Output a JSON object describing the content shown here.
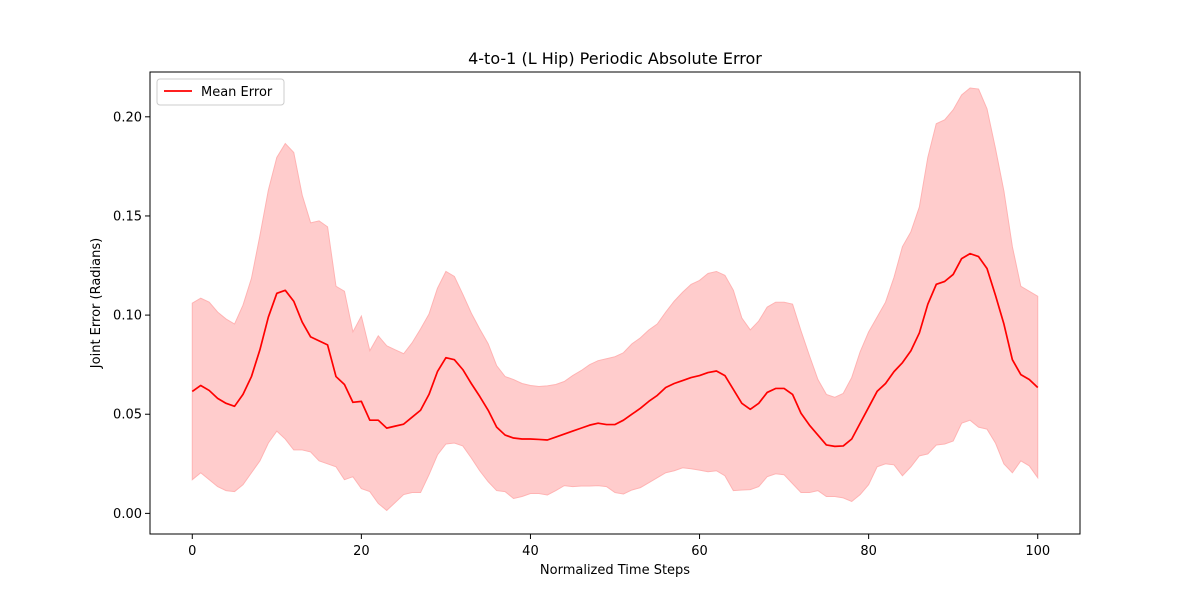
{
  "chart_data": {
    "type": "area",
    "title": "4-to-1 (L Hip) Periodic Absolute Error",
    "xlabel": "Normalized Time Steps",
    "ylabel": "Joint Error (Radians)",
    "xlim": [
      -5,
      105
    ],
    "ylim": [
      -0.0104,
      0.2226
    ],
    "xticks": [
      "0",
      "20",
      "40",
      "60",
      "80",
      "100"
    ],
    "yticks": [
      "0.00",
      "0.05",
      "0.10",
      "0.15",
      "0.20"
    ],
    "grid": false,
    "legend_position": "top-left",
    "colors": {
      "line": "#ff0000",
      "band_fill": "#ffcccc",
      "band_edge": "#ffb3b3",
      "frame": "#000000"
    },
    "x": [
      0,
      1,
      2,
      3,
      4,
      5,
      6,
      7,
      8,
      9,
      10,
      11,
      12,
      13,
      14,
      15,
      16,
      17,
      18,
      19,
      20,
      21,
      22,
      23,
      24,
      25,
      26,
      27,
      28,
      29,
      30,
      31,
      32,
      33,
      34,
      35,
      36,
      37,
      38,
      39,
      40,
      41,
      42,
      43,
      44,
      45,
      46,
      47,
      48,
      49,
      50,
      51,
      52,
      53,
      54,
      55,
      56,
      57,
      58,
      59,
      60,
      61,
      62,
      63,
      64,
      65,
      66,
      67,
      68,
      69,
      70,
      71,
      72,
      73,
      74,
      75,
      76,
      77,
      78,
      79,
      80,
      81,
      82,
      83,
      84,
      85,
      86,
      87,
      88,
      89,
      90,
      91,
      92,
      93,
      94,
      95,
      96,
      97,
      98,
      99,
      100
    ],
    "series": [
      {
        "name": "Mean Error",
        "values": [
          0.0615,
          0.0645,
          0.062,
          0.058,
          0.0555,
          0.054,
          0.06,
          0.069,
          0.0825,
          0.099,
          0.111,
          0.1125,
          0.107,
          0.0965,
          0.089,
          0.087,
          0.085,
          0.069,
          0.065,
          0.056,
          0.0565,
          0.047,
          0.047,
          0.043,
          0.044,
          0.045,
          0.0485,
          0.052,
          0.06,
          0.0715,
          0.0785,
          0.0775,
          0.0725,
          0.0655,
          0.059,
          0.052,
          0.0435,
          0.0395,
          0.038,
          0.0375,
          0.0375,
          0.0373,
          0.037,
          0.0385,
          0.04,
          0.0415,
          0.043,
          0.0445,
          0.0455,
          0.0448,
          0.0448,
          0.047,
          0.05,
          0.053,
          0.0565,
          0.0595,
          0.0635,
          0.0655,
          0.067,
          0.0685,
          0.0695,
          0.071,
          0.0718,
          0.0695,
          0.0625,
          0.0555,
          0.0525,
          0.0555,
          0.061,
          0.063,
          0.063,
          0.06,
          0.0505,
          0.0445,
          0.0395,
          0.0345,
          0.0338,
          0.034,
          0.0375,
          0.0455,
          0.0535,
          0.0615,
          0.0655,
          0.0715,
          0.076,
          0.082,
          0.091,
          0.1055,
          0.1155,
          0.117,
          0.1205,
          0.1285,
          0.131,
          0.1295,
          0.1235,
          0.11,
          0.0955,
          0.0775,
          0.07,
          0.0675,
          0.0635
        ]
      }
    ],
    "band": {
      "upper": [
        0.106,
        0.1085,
        0.1065,
        0.1015,
        0.098,
        0.0955,
        0.105,
        0.1185,
        0.14,
        0.163,
        0.1795,
        0.1865,
        0.182,
        0.1605,
        0.1465,
        0.1475,
        0.1445,
        0.1145,
        0.112,
        0.0915,
        0.0995,
        0.082,
        0.0895,
        0.0845,
        0.0825,
        0.0805,
        0.086,
        0.093,
        0.1005,
        0.1135,
        0.122,
        0.1195,
        0.1105,
        0.101,
        0.093,
        0.0855,
        0.0745,
        0.069,
        0.0675,
        0.0655,
        0.0645,
        0.064,
        0.0643,
        0.065,
        0.0665,
        0.0695,
        0.072,
        0.075,
        0.077,
        0.078,
        0.079,
        0.081,
        0.0855,
        0.0885,
        0.0925,
        0.0955,
        0.1015,
        0.107,
        0.1115,
        0.1155,
        0.1175,
        0.121,
        0.122,
        0.12,
        0.1125,
        0.0985,
        0.0925,
        0.097,
        0.104,
        0.1065,
        0.1065,
        0.1055,
        0.092,
        0.0795,
        0.0675,
        0.06,
        0.0585,
        0.0605,
        0.0685,
        0.0815,
        0.0915,
        0.099,
        0.1065,
        0.119,
        0.1345,
        0.142,
        0.1545,
        0.1795,
        0.1965,
        0.1985,
        0.2035,
        0.211,
        0.2145,
        0.214,
        0.204,
        0.184,
        0.1625,
        0.1345,
        0.1145,
        0.112,
        0.1095
      ],
      "lower": [
        0.017,
        0.0205,
        0.017,
        0.0135,
        0.0115,
        0.011,
        0.0145,
        0.0205,
        0.0265,
        0.0355,
        0.0415,
        0.0375,
        0.032,
        0.032,
        0.031,
        0.0265,
        0.025,
        0.0235,
        0.017,
        0.0185,
        0.0125,
        0.011,
        0.005,
        0.0015,
        0.0055,
        0.0095,
        0.0105,
        0.0105,
        0.0195,
        0.0295,
        0.035,
        0.0355,
        0.034,
        0.028,
        0.0215,
        0.016,
        0.0115,
        0.011,
        0.0075,
        0.0085,
        0.01,
        0.01,
        0.0093,
        0.0115,
        0.014,
        0.0135,
        0.0138,
        0.0138,
        0.014,
        0.0135,
        0.0105,
        0.0098,
        0.0118,
        0.013,
        0.0155,
        0.018,
        0.0205,
        0.0215,
        0.023,
        0.0225,
        0.0218,
        0.021,
        0.0215,
        0.019,
        0.0115,
        0.0118,
        0.012,
        0.0135,
        0.0185,
        0.02,
        0.0195,
        0.015,
        0.0105,
        0.0105,
        0.0115,
        0.0085,
        0.0085,
        0.0078,
        0.006,
        0.0095,
        0.0145,
        0.0235,
        0.025,
        0.0245,
        0.019,
        0.0235,
        0.029,
        0.03,
        0.0345,
        0.035,
        0.0365,
        0.0455,
        0.047,
        0.0435,
        0.0425,
        0.0355,
        0.025,
        0.0205,
        0.0265,
        0.024,
        0.018
      ]
    }
  }
}
